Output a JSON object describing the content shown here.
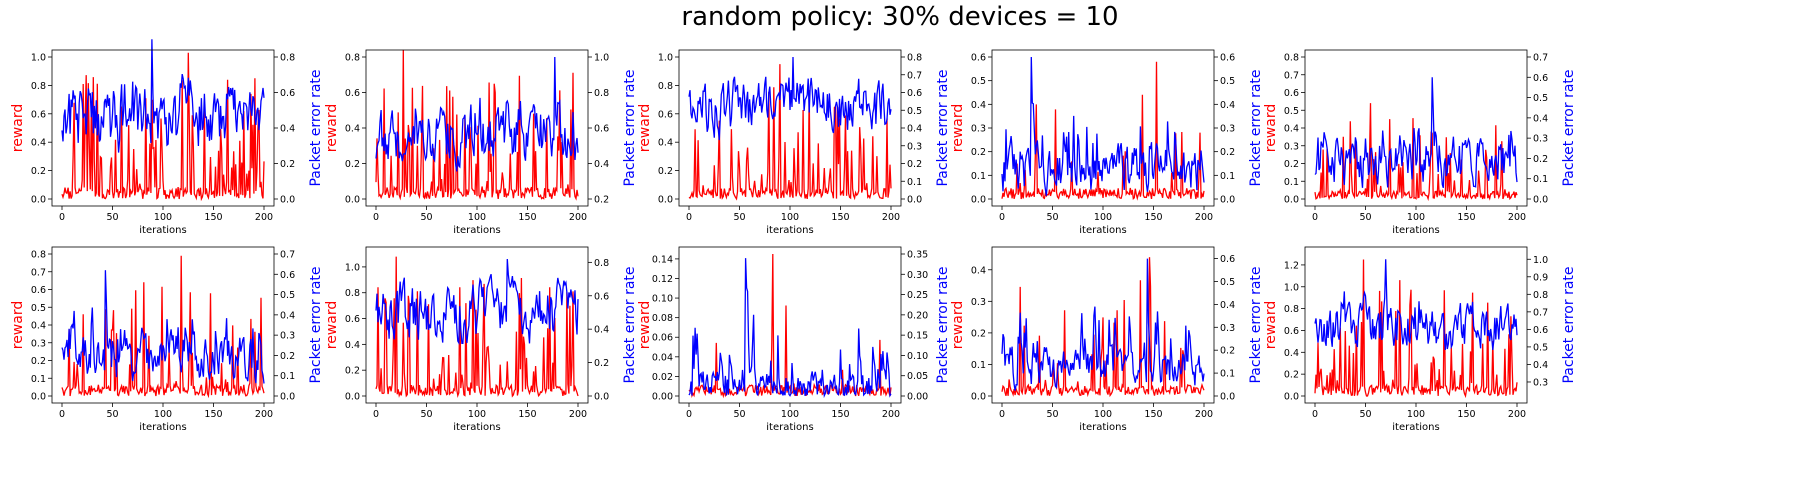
{
  "figure": {
    "title": "random policy: 30% devices = 10",
    "xlabel": "iterations",
    "left_ylabel": "reward",
    "right_ylabel": "Packet error rate",
    "reward_color": "#ff0000",
    "per_color": "#0000ff"
  },
  "chart_data": [
    {
      "type": "line",
      "xlabel": "iterations",
      "ylabel": "reward",
      "y2label": "Packet error rate",
      "xlim": [
        0,
        200
      ],
      "xticks": [
        0,
        50,
        100,
        150,
        200
      ],
      "ylim": [
        0,
        1.0
      ],
      "yticks": [
        "0.0",
        "0.2",
        "0.4",
        "0.6",
        "0.8",
        "1.0"
      ],
      "y2lim": [
        0,
        0.8
      ],
      "y2ticks": [
        "0.0",
        "0.2",
        "0.4",
        "0.6",
        "0.8"
      ],
      "reward_peak": 1.03,
      "per_base": 0.45,
      "per_spread": 0.18,
      "per_peak": 0.9,
      "reward_density": 0.35
    },
    {
      "type": "line",
      "xlabel": "iterations",
      "ylabel": "reward",
      "y2label": "Packet error rate",
      "xlim": [
        0,
        200
      ],
      "xticks": [
        0,
        50,
        100,
        150,
        200
      ],
      "ylim": [
        0,
        0.8
      ],
      "yticks": [
        "0.0",
        "0.2",
        "0.4",
        "0.6",
        "0.8"
      ],
      "y2lim": [
        0.2,
        1.0
      ],
      "y2ticks": [
        "0.2",
        "0.4",
        "0.6",
        "0.8",
        "1.0"
      ],
      "reward_peak": 0.84,
      "per_base": 0.55,
      "per_spread": 0.14,
      "per_peak": 1.0,
      "reward_density": 0.35
    },
    {
      "type": "line",
      "xlabel": "iterations",
      "ylabel": "reward",
      "y2label": "Packet error rate",
      "xlim": [
        0,
        200
      ],
      "xticks": [
        0,
        50,
        100,
        150,
        200
      ],
      "ylim": [
        0,
        1.0
      ],
      "yticks": [
        "0.0",
        "0.2",
        "0.4",
        "0.6",
        "0.8",
        "1.0"
      ],
      "y2lim": [
        0,
        0.8
      ],
      "y2ticks": [
        "0.0",
        "0.1",
        "0.2",
        "0.3",
        "0.4",
        "0.5",
        "0.6",
        "0.7",
        "0.8"
      ],
      "reward_peak": 0.95,
      "per_base": 0.52,
      "per_spread": 0.15,
      "per_peak": 0.8,
      "reward_density": 0.35
    },
    {
      "type": "line",
      "xlabel": "iterations",
      "ylabel": "reward",
      "y2label": "Packet error rate",
      "xlim": [
        0,
        200
      ],
      "xticks": [
        0,
        50,
        100,
        150,
        200
      ],
      "ylim": [
        0,
        0.6
      ],
      "yticks": [
        "0.0",
        "0.1",
        "0.2",
        "0.3",
        "0.4",
        "0.5",
        "0.6"
      ],
      "y2lim": [
        0,
        0.6
      ],
      "y2ticks": [
        "0.0",
        "0.1",
        "0.2",
        "0.3",
        "0.4",
        "0.5",
        "0.6"
      ],
      "reward_peak": 0.58,
      "per_base": 0.12,
      "per_spread": 0.1,
      "per_peak": 0.6,
      "reward_density": 0.15
    },
    {
      "type": "line",
      "xlabel": "iterations",
      "ylabel": "reward",
      "y2label": "Packet error rate",
      "xlim": [
        0,
        200
      ],
      "xticks": [
        0,
        50,
        100,
        150,
        200
      ],
      "ylim": [
        0,
        0.8
      ],
      "yticks": [
        "0.0",
        "0.1",
        "0.2",
        "0.3",
        "0.4",
        "0.5",
        "0.6",
        "0.7",
        "0.8"
      ],
      "y2lim": [
        0,
        0.7
      ],
      "y2ticks": [
        "0.0",
        "0.1",
        "0.2",
        "0.3",
        "0.4",
        "0.5",
        "0.6",
        "0.7"
      ],
      "reward_peak": 0.54,
      "per_base": 0.2,
      "per_spread": 0.12,
      "per_peak": 0.6,
      "reward_density": 0.25
    },
    {
      "type": "line",
      "xlabel": "iterations",
      "ylabel": "reward",
      "y2label": "Packet error rate",
      "xlim": [
        0,
        200
      ],
      "xticks": [
        0,
        50,
        100,
        150,
        200
      ],
      "ylim": [
        0,
        0.8
      ],
      "yticks": [
        "0.0",
        "0.1",
        "0.2",
        "0.3",
        "0.4",
        "0.5",
        "0.6",
        "0.7",
        "0.8"
      ],
      "y2lim": [
        0,
        0.7
      ],
      "y2ticks": [
        "0.0",
        "0.1",
        "0.2",
        "0.3",
        "0.4",
        "0.5",
        "0.6",
        "0.7"
      ],
      "reward_peak": 0.79,
      "per_base": 0.18,
      "per_spread": 0.1,
      "per_peak": 0.62,
      "reward_density": 0.2
    },
    {
      "type": "line",
      "xlabel": "iterations",
      "ylabel": "reward",
      "y2label": "Packet error rate",
      "xlim": [
        0,
        200
      ],
      "xticks": [
        0,
        50,
        100,
        150,
        200
      ],
      "ylim": [
        0,
        1.1
      ],
      "yticks": [
        "0.0",
        "0.2",
        "0.4",
        "0.6",
        "0.8",
        "1.0"
      ],
      "y2lim": [
        0,
        0.85
      ],
      "y2ticks": [
        "0.0",
        "0.2",
        "0.4",
        "0.6",
        "0.8"
      ],
      "reward_peak": 1.08,
      "per_base": 0.5,
      "per_spread": 0.16,
      "per_peak": 0.82,
      "reward_density": 0.35
    },
    {
      "type": "line",
      "xlabel": "iterations",
      "ylabel": "reward",
      "y2label": "Packet error rate",
      "xlim": [
        0,
        200
      ],
      "xticks": [
        0,
        50,
        100,
        150,
        200
      ],
      "ylim": [
        0,
        0.145
      ],
      "yticks": [
        "0.00",
        "0.02",
        "0.04",
        "0.06",
        "0.08",
        "0.10",
        "0.12",
        "0.14"
      ],
      "y2lim": [
        0,
        0.35
      ],
      "y2ticks": [
        "0.00",
        "0.05",
        "0.10",
        "0.15",
        "0.20",
        "0.25",
        "0.30",
        "0.35"
      ],
      "reward_peak": 0.145,
      "per_base": 0.02,
      "per_spread": 0.04,
      "per_peak": 0.34,
      "reward_density": 0.08
    },
    {
      "type": "line",
      "xlabel": "iterations",
      "ylabel": "reward",
      "y2label": "Packet error rate",
      "xlim": [
        0,
        200
      ],
      "xticks": [
        0,
        50,
        100,
        150,
        200
      ],
      "ylim": [
        0,
        0.45
      ],
      "yticks": [
        "0.0",
        "0.1",
        "0.2",
        "0.3",
        "0.4"
      ],
      "y2lim": [
        0,
        0.62
      ],
      "y2ticks": [
        "0.0",
        "0.1",
        "0.2",
        "0.3",
        "0.4",
        "0.5",
        "0.6"
      ],
      "reward_peak": 0.44,
      "per_base": 0.12,
      "per_spread": 0.08,
      "per_peak": 0.6,
      "reward_density": 0.15
    },
    {
      "type": "line",
      "xlabel": "iterations",
      "ylabel": "reward",
      "y2label": "Packet error rate",
      "xlim": [
        0,
        200
      ],
      "xticks": [
        0,
        50,
        100,
        150,
        200
      ],
      "ylim": [
        0,
        1.3
      ],
      "yticks": [
        "0.0",
        "0.2",
        "0.4",
        "0.6",
        "0.8",
        "1.0",
        "1.2"
      ],
      "y2lim": [
        0.22,
        1.03
      ],
      "y2ticks": [
        "0.3",
        "0.4",
        "0.5",
        "0.6",
        "0.7",
        "0.8",
        "0.9",
        "1.0"
      ],
      "reward_peak": 1.25,
      "per_base": 0.6,
      "per_spread": 0.12,
      "per_peak": 1.0,
      "reward_density": 0.3
    }
  ]
}
